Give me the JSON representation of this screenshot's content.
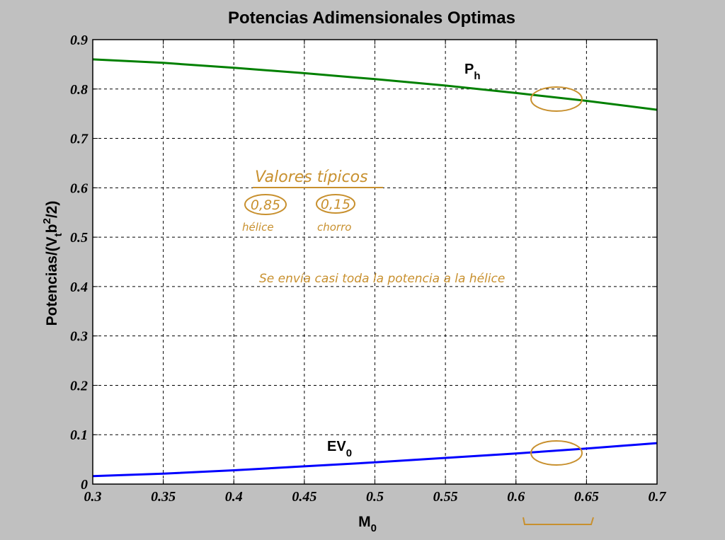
{
  "chart_data": {
    "type": "line",
    "title": "Potencias Adimensionales Optimas",
    "xlabel": {
      "base": "M",
      "sub": "0"
    },
    "ylabel": {
      "pre": "Potencias/(V",
      "sub": "t",
      "mid": "b",
      "sup": "2",
      "post": "/2)"
    },
    "xlim": [
      0.3,
      0.7
    ],
    "ylim": [
      0,
      0.9
    ],
    "xticks": [
      "0.3",
      "0.35",
      "0.4",
      "0.45",
      "0.5",
      "0.55",
      "0.6",
      "0.65",
      "0.7"
    ],
    "yticks": [
      "0",
      "0.1",
      "0.2",
      "0.3",
      "0.4",
      "0.5",
      "0.6",
      "0.7",
      "0.8",
      "0.9"
    ],
    "grid": true,
    "series": [
      {
        "name": {
          "base": "P",
          "sub": "h"
        },
        "color": "#008000",
        "x": [
          0.3,
          0.35,
          0.4,
          0.45,
          0.5,
          0.55,
          0.6,
          0.65,
          0.7
        ],
        "y": [
          0.86,
          0.853,
          0.843,
          0.832,
          0.82,
          0.807,
          0.792,
          0.776,
          0.758
        ]
      },
      {
        "name": {
          "base": "EV",
          "sub": "0"
        },
        "color": "#0000ff",
        "x": [
          0.3,
          0.35,
          0.4,
          0.45,
          0.5,
          0.55,
          0.6,
          0.65,
          0.7
        ],
        "y": [
          0.016,
          0.021,
          0.028,
          0.036,
          0.044,
          0.053,
          0.062,
          0.072,
          0.083
        ]
      }
    ],
    "annotations": {
      "heading": "Valores típicos",
      "value1": "0,85",
      "value1_label": "hélice",
      "value2": "0,15",
      "value2_label": "chorro",
      "note": "Se envía casi toda la potencia a la hélice",
      "color": "#c8902e"
    }
  }
}
